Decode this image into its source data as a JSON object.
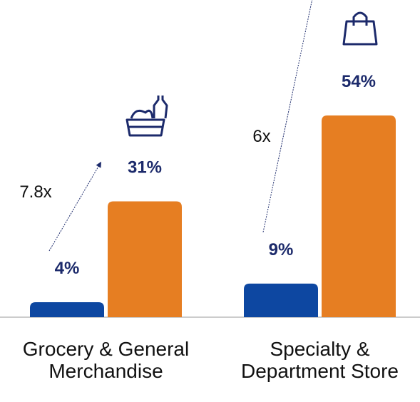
{
  "chart_data": {
    "type": "bar",
    "categories": [
      "Grocery & General Merchandise",
      "Specialty & Department Store"
    ],
    "series": [
      {
        "color": "#0d47a1",
        "values": [
          4,
          9
        ],
        "value_labels": [
          "4%",
          "9%"
        ]
      },
      {
        "color": "#e67e22",
        "values": [
          31,
          54
        ],
        "value_labels": [
          "31%",
          "54%"
        ]
      }
    ],
    "annotations": [
      "7.8x",
      "6x"
    ]
  }
}
